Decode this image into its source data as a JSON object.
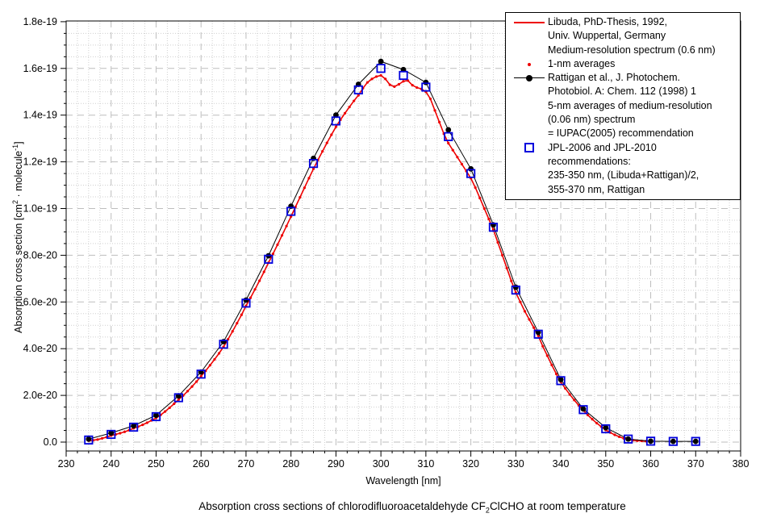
{
  "caption": {
    "part1": "Absorption cross sections of chlorodifluoroacetaldehyde CF",
    "sub": "2",
    "part2": "ClCHO at room temperature"
  },
  "x_axis_title": "Wavelength [nm]",
  "y_axis_title": {
    "part1": "Absorption cross section [cm",
    "sup1": "2",
    "part2": " · molecule",
    "sup2": "-1",
    "part3": "]"
  },
  "legend": {
    "entries": [
      {
        "symbol": "red-line",
        "lines": [
          "Libuda, PhD-Thesis, 1992,",
          "Univ. Wuppertal, Germany",
          "Medium-resolution spectrum (0.6 nm)"
        ]
      },
      {
        "symbol": "red-dot",
        "lines": [
          "1-nm averages"
        ]
      },
      {
        "symbol": "black-line-dot",
        "lines": [
          "Rattigan et al., J. Photochem.",
          "Photobiol. A: Chem. 112 (1998) 1",
          "5-nm averages of medium-resolution",
          "(0.06 nm) spectrum",
          "= IUPAC(2005) recommendation"
        ]
      },
      {
        "symbol": "blue-open-square",
        "lines": [
          "JPL-2006 and JPL-2010",
          "recommendations:",
          "235-350 nm, (Libuda+Rattigan)/2,",
          "355-370 nm, Rattigan"
        ]
      }
    ]
  },
  "chart_data": {
    "type": "line",
    "title": "Absorption cross sections of chlorodifluoroacetaldehyde CF2ClCHO at room temperature",
    "xlabel": "Wavelength [nm]",
    "ylabel": "Absorption cross section [cm^2 molecule^-1]",
    "x_range": [
      230,
      380
    ],
    "y_range_1e20": [
      -0.38,
      18
    ],
    "grid": {
      "major": true,
      "minor": true,
      "x_minor_step": 2.5,
      "y_minor_step_1e20": 0.5
    },
    "legend_position": "top-right-inside",
    "x_ticks": [
      230,
      240,
      250,
      260,
      270,
      280,
      290,
      300,
      310,
      320,
      330,
      340,
      350,
      360,
      370,
      380
    ],
    "y_ticks": [
      {
        "v": 0,
        "label": "0.0"
      },
      {
        "v": 2,
        "label": "2.0e-20"
      },
      {
        "v": 4,
        "label": "4.0e-20"
      },
      {
        "v": 6,
        "label": "6.0e-20"
      },
      {
        "v": 8,
        "label": "8.0e-20"
      },
      {
        "v": 10,
        "label": "1.0e-19"
      },
      {
        "v": 12,
        "label": "1.2e-19"
      },
      {
        "v": 14,
        "label": "1.4e-19"
      },
      {
        "v": 16,
        "label": "1.6e-19"
      },
      {
        "v": 18,
        "label": "1.8e-19"
      }
    ],
    "value_unit": "1e-20 cm2 molecule-1",
    "series": [
      {
        "name": "Libuda 1992 medium-resolution spectrum (0.6 nm) with 1-nm averages",
        "color": "#ee0000",
        "marker": "dot",
        "line_width": 1.6,
        "x_start": 235,
        "x_step": 1,
        "values": [
          0.06,
          0.08,
          0.11,
          0.16,
          0.21,
          0.28,
          0.33,
          0.38,
          0.44,
          0.51,
          0.59,
          0.66,
          0.74,
          0.83,
          0.93,
          1.03,
          1.16,
          1.31,
          1.47,
          1.64,
          1.82,
          1.99,
          2.18,
          2.38,
          2.59,
          2.82,
          3.05,
          3.29,
          3.54,
          3.8,
          4.08,
          4.4,
          4.74,
          5.09,
          5.45,
          5.83,
          6.18,
          6.54,
          6.91,
          7.29,
          7.68,
          8.06,
          8.45,
          8.85,
          9.25,
          9.66,
          10.07,
          10.48,
          10.89,
          11.3,
          11.7,
          12.08,
          12.45,
          12.81,
          13.16,
          13.5,
          13.8,
          14.08,
          14.35,
          14.61,
          14.85,
          15.15,
          15.4,
          15.55,
          15.65,
          15.7,
          15.55,
          15.3,
          15.22,
          15.32,
          15.45,
          15.48,
          15.28,
          15.18,
          15.12,
          15.0,
          14.7,
          14.2,
          13.7,
          13.2,
          12.8,
          12.5,
          12.2,
          11.9,
          11.6,
          11.3,
          10.9,
          10.45,
          10.0,
          9.55,
          9.1,
          8.55,
          8.0,
          7.45,
          6.9,
          6.4,
          6.0,
          5.6,
          5.25,
          4.9,
          4.55,
          4.1,
          3.7,
          3.3,
          2.92,
          2.58,
          2.3,
          2.04,
          1.8,
          1.57,
          1.36,
          1.16,
          0.98,
          0.81,
          0.66,
          0.52,
          0.41,
          0.31,
          0.23,
          0.16,
          0.11,
          0.08,
          0.06,
          0.05,
          0.04
        ]
      },
      {
        "name": "Rattigan et al. 1998, 5-nm averages = IUPAC(2005) recommendation",
        "color": "#000000",
        "marker": "filled-circle",
        "line_width": 1,
        "x_start": 235,
        "x_step": 5,
        "values": [
          0.13,
          0.39,
          0.7,
          1.15,
          1.98,
          3.0,
          4.3,
          6.08,
          7.98,
          10.1,
          12.15,
          14.0,
          15.32,
          16.3,
          15.95,
          15.4,
          13.37,
          11.7,
          9.3,
          6.63,
          4.7,
          2.68,
          1.42,
          0.62,
          0.13,
          0.04,
          0.03,
          0.03
        ]
      },
      {
        "name": "JPL-2006 and JPL-2010 recommendations",
        "color": "#0000dd",
        "marker": "open-square",
        "line_width": 0,
        "x_start": 235,
        "x_step": 5,
        "values": [
          0.09,
          0.33,
          0.64,
          1.09,
          1.9,
          2.91,
          4.19,
          5.95,
          7.83,
          9.88,
          11.93,
          13.75,
          15.08,
          16.0,
          15.7,
          15.2,
          13.08,
          11.5,
          9.2,
          6.51,
          4.62,
          2.63,
          1.39,
          0.57,
          0.13,
          0.04,
          0.03,
          0.03
        ]
      }
    ]
  }
}
